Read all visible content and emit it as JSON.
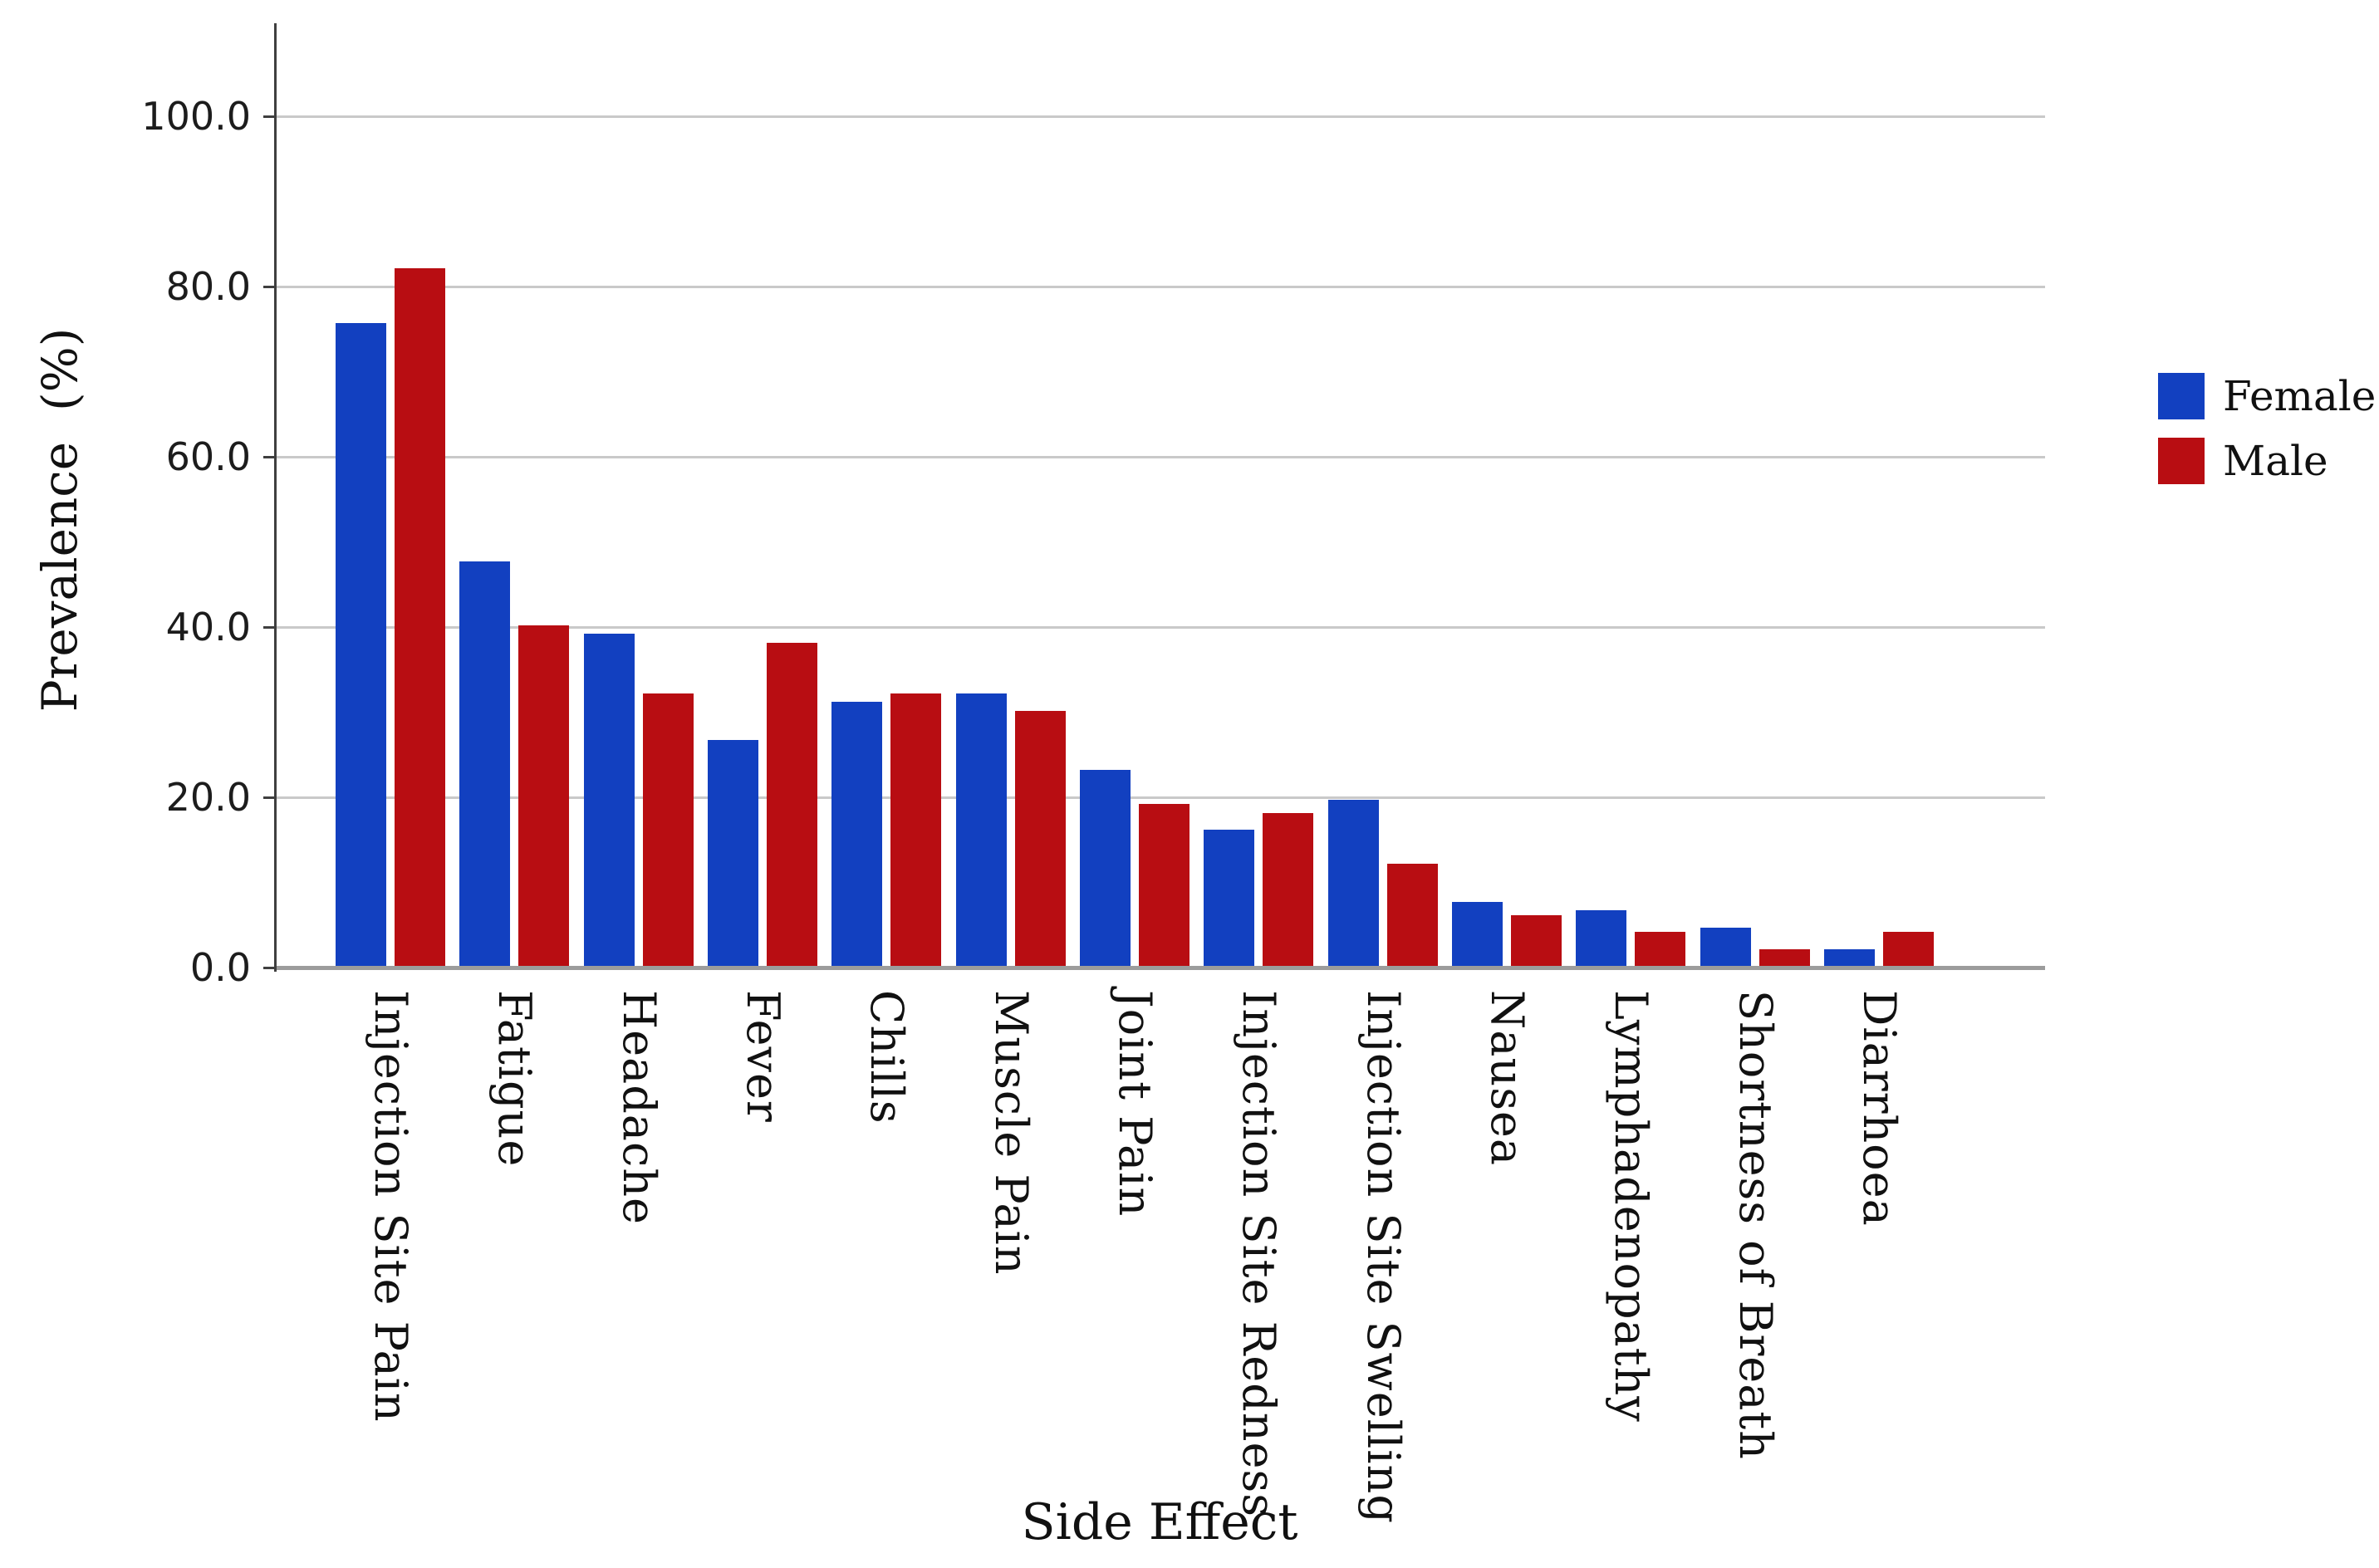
{
  "chart_data": {
    "type": "bar",
    "title": "",
    "xlabel": "Side Effect",
    "ylabel": "Prevalence  (%)",
    "categories": [
      "Injection Site Pain",
      "Fatigue",
      "Headache",
      "Fever",
      "Chills",
      "Muscle Pain",
      "Joint Pain",
      "Injection Site Redness",
      "Injection Site Swelling",
      "Nausea",
      "Lymphadenopathy",
      "Shortness of Breath",
      "Diarrhoea"
    ],
    "series": [
      {
        "name": "Female",
        "color": "#1240c0",
        "values": [
          75.5,
          47.5,
          39,
          26.5,
          31,
          32,
          23,
          16,
          19.5,
          7.5,
          6.5,
          4.5,
          2
        ]
      },
      {
        "name": "Male",
        "color": "#b80d12",
        "values": [
          82,
          40,
          32,
          38,
          32,
          30,
          19,
          18,
          12,
          6,
          4,
          2,
          4
        ]
      }
    ],
    "y_ticks": [
      {
        "v": 100,
        "label": "100.0"
      },
      {
        "v": 80,
        "label": "80.0"
      },
      {
        "v": 60,
        "label": "60.0"
      },
      {
        "v": 40,
        "label": "40.0"
      },
      {
        "v": 20,
        "label": "20.0"
      },
      {
        "v": 0,
        "label": "0.0"
      }
    ],
    "ylim": [
      0,
      110
    ],
    "grid": true,
    "legend_position": "right"
  },
  "colors": {
    "gridline": "#c9c9c9",
    "baseline": "#9c9c9c",
    "axis": "#3f3f3f",
    "text": "#111111",
    "background": "#ffffff"
  }
}
